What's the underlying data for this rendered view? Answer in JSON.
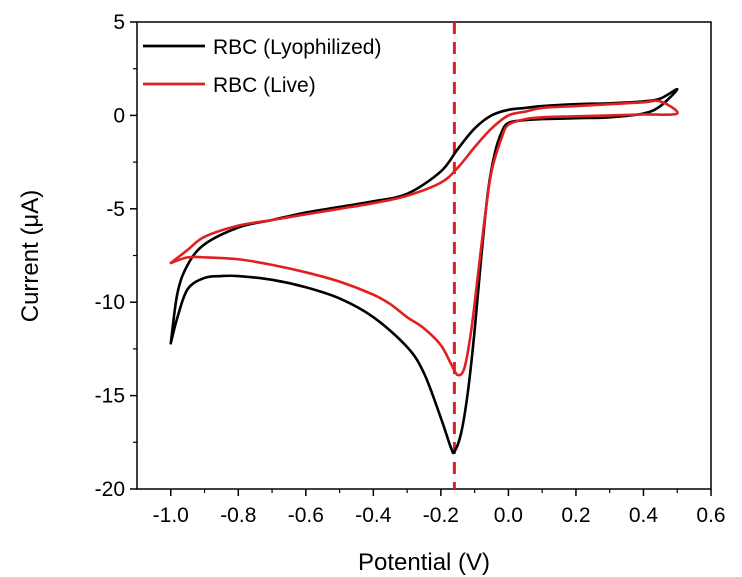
{
  "chart_data": {
    "type": "line",
    "title": "",
    "xlabel": "Potential (V)",
    "ylabel": "Current (μA)",
    "xlim": [
      -1.1,
      0.6
    ],
    "ylim": [
      -20,
      5
    ],
    "xticks": [
      "-1.0",
      "-0.8",
      "-0.6",
      "-0.4",
      "-0.2",
      "0.0",
      "0.2",
      "0.4",
      "0.6"
    ],
    "yticks": [
      "5",
      "0",
      "-5",
      "-10",
      "-15",
      "-20"
    ],
    "legend_position": "top-left",
    "grid": false,
    "reference_line": {
      "x": -0.16,
      "style": "dashed",
      "color": "#e02020"
    },
    "series": [
      {
        "name": "RBC (Lyophilized)",
        "color": "#000000",
        "x": [
          -1.0,
          -0.98,
          -0.95,
          -0.9,
          -0.85,
          -0.8,
          -0.7,
          -0.6,
          -0.5,
          -0.4,
          -0.3,
          -0.25,
          -0.2,
          -0.17,
          -0.16,
          -0.14,
          -0.12,
          -0.1,
          -0.08,
          -0.06,
          -0.04,
          -0.02,
          0.0,
          0.05,
          0.1,
          0.2,
          0.3,
          0.4,
          0.45,
          0.5,
          0.45,
          0.4,
          0.3,
          0.2,
          0.1,
          0.05,
          0.0,
          -0.05,
          -0.1,
          -0.15,
          -0.2,
          -0.3,
          -0.4,
          -0.5,
          -0.6,
          -0.7,
          -0.8,
          -0.9,
          -0.95,
          -0.98,
          -1.0
        ],
        "values": [
          -12.2,
          -10.8,
          -9.3,
          -8.7,
          -8.6,
          -8.6,
          -8.8,
          -9.2,
          -9.8,
          -10.8,
          -12.4,
          -13.8,
          -16.2,
          -17.8,
          -18.0,
          -17.0,
          -14.8,
          -11.5,
          -7.5,
          -4.0,
          -2.0,
          -0.9,
          -0.4,
          -0.25,
          -0.2,
          -0.15,
          -0.1,
          0.1,
          0.5,
          1.4,
          0.9,
          0.75,
          0.65,
          0.6,
          0.5,
          0.4,
          0.3,
          0.0,
          -0.7,
          -1.8,
          -3.0,
          -4.2,
          -4.6,
          -4.9,
          -5.2,
          -5.6,
          -6.0,
          -6.9,
          -8.0,
          -9.5,
          -12.2
        ]
      },
      {
        "name": "RBC (Live)",
        "color": "#e02020",
        "x": [
          -1.0,
          -0.95,
          -0.9,
          -0.8,
          -0.7,
          -0.6,
          -0.5,
          -0.4,
          -0.35,
          -0.3,
          -0.25,
          -0.2,
          -0.17,
          -0.15,
          -0.13,
          -0.11,
          -0.09,
          -0.07,
          -0.05,
          -0.02,
          0.0,
          0.05,
          0.1,
          0.2,
          0.3,
          0.4,
          0.5,
          0.45,
          0.4,
          0.3,
          0.2,
          0.1,
          0.05,
          0.0,
          -0.05,
          -0.1,
          -0.15,
          -0.2,
          -0.3,
          -0.4,
          -0.5,
          -0.6,
          -0.7,
          -0.8,
          -0.9,
          -0.95,
          -1.0
        ],
        "values": [
          -7.9,
          -7.6,
          -7.6,
          -7.7,
          -8.0,
          -8.4,
          -8.9,
          -9.6,
          -10.1,
          -10.8,
          -11.4,
          -12.3,
          -13.3,
          -13.9,
          -13.5,
          -11.5,
          -8.5,
          -5.5,
          -3.0,
          -1.2,
          -0.5,
          -0.2,
          -0.1,
          -0.05,
          0.0,
          0.05,
          0.1,
          0.75,
          0.7,
          0.6,
          0.5,
          0.4,
          0.2,
          0.0,
          -0.7,
          -1.7,
          -2.8,
          -3.6,
          -4.3,
          -4.7,
          -5.0,
          -5.3,
          -5.6,
          -5.9,
          -6.5,
          -7.2,
          -7.9
        ]
      }
    ]
  }
}
